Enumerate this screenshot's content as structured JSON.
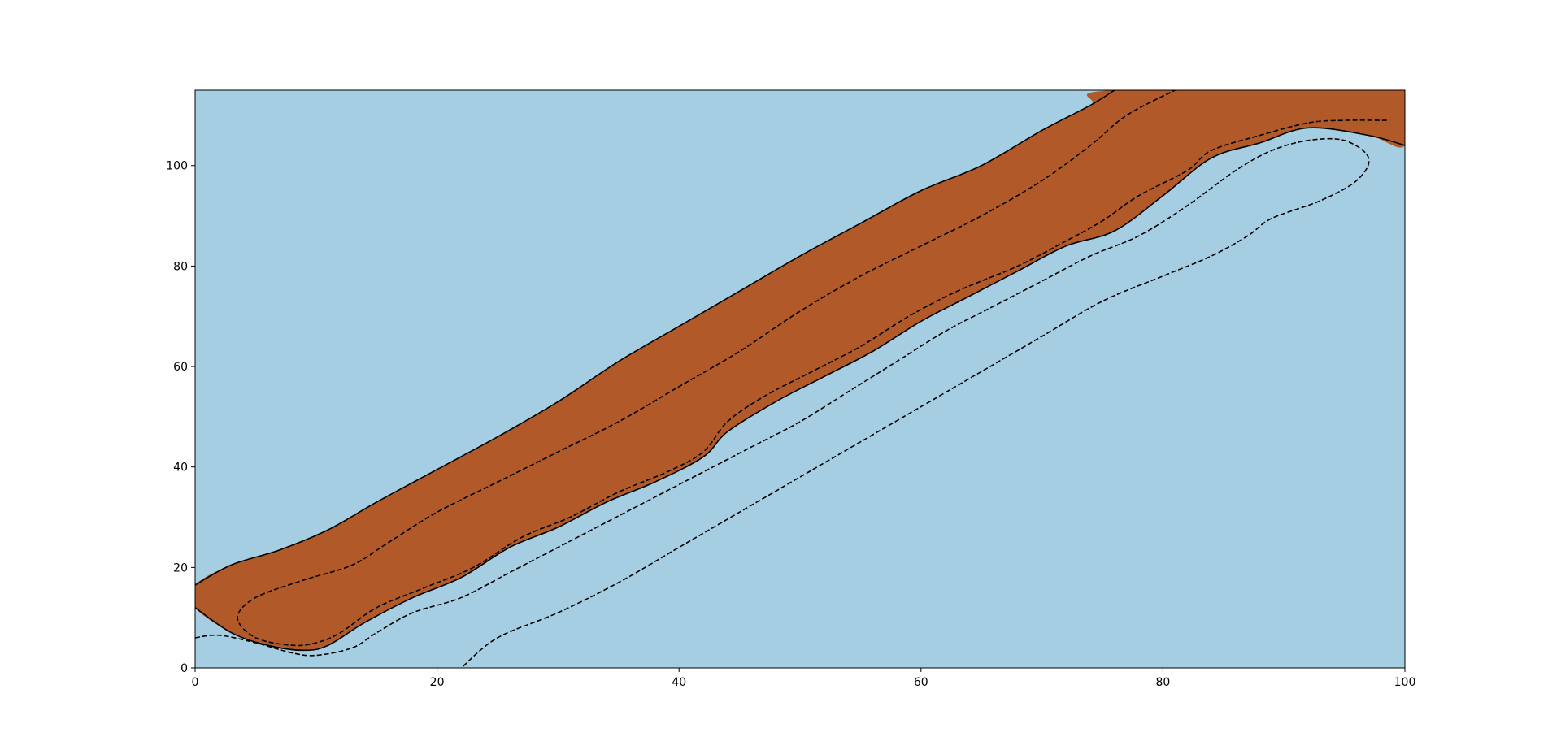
{
  "chart_data": {
    "type": "contour",
    "title": "",
    "xlabel": "",
    "ylabel": "",
    "xlim": [
      0,
      100
    ],
    "ylim": [
      0,
      115
    ],
    "grid": false,
    "legend": "none",
    "xticks": [
      0,
      20,
      40,
      60,
      80,
      100
    ],
    "yticks": [
      0,
      20,
      40,
      60,
      80,
      100
    ],
    "colors": {
      "background_region": "#a6cee3",
      "band_region": "#b15928",
      "contour_line": "#000000"
    },
    "filled_regions": [
      {
        "class": "band",
        "fill": "band_region",
        "boundary": [
          [
            0,
            16.5
          ],
          [
            3,
            20.5
          ],
          [
            7,
            23.5
          ],
          [
            11,
            27.5
          ],
          [
            15,
            33
          ],
          [
            20,
            39.5
          ],
          [
            25,
            46
          ],
          [
            30,
            53
          ],
          [
            35,
            61
          ],
          [
            40,
            68
          ],
          [
            45,
            75
          ],
          [
            50,
            82
          ],
          [
            55,
            88.5
          ],
          [
            60,
            95
          ],
          [
            65,
            100
          ],
          [
            70,
            107
          ],
          [
            74,
            112
          ],
          [
            76,
            115
          ],
          [
            100,
            115
          ],
          [
            100,
            104
          ],
          [
            97,
            106
          ],
          [
            92,
            107.5
          ],
          [
            88,
            104.5
          ],
          [
            84,
            101.5
          ],
          [
            80,
            94
          ],
          [
            76,
            87
          ],
          [
            72,
            84
          ],
          [
            68,
            79
          ],
          [
            64,
            74
          ],
          [
            60,
            69
          ],
          [
            56,
            63
          ],
          [
            52,
            58
          ],
          [
            48,
            53
          ],
          [
            44,
            47
          ],
          [
            42,
            42
          ],
          [
            38,
            37
          ],
          [
            34,
            33
          ],
          [
            30,
            28
          ],
          [
            26,
            24
          ],
          [
            22,
            18
          ],
          [
            18,
            14
          ],
          [
            14,
            9
          ],
          [
            11,
            4.5
          ],
          [
            9,
            3.5
          ],
          [
            6,
            4.5
          ],
          [
            3,
            7
          ],
          [
            0,
            12
          ]
        ]
      }
    ],
    "contours": [
      {
        "style": "solid",
        "points": [
          [
            0,
            16.5
          ],
          [
            3,
            20.5
          ],
          [
            7,
            23.5
          ],
          [
            11,
            27.5
          ],
          [
            15,
            33
          ],
          [
            20,
            39.5
          ],
          [
            25,
            46
          ],
          [
            30,
            53
          ],
          [
            35,
            61
          ],
          [
            40,
            68
          ],
          [
            45,
            75
          ],
          [
            50,
            82
          ],
          [
            55,
            88.5
          ],
          [
            60,
            95
          ],
          [
            65,
            100
          ],
          [
            70,
            107
          ],
          [
            74,
            112
          ],
          [
            76,
            115
          ]
        ]
      },
      {
        "style": "solid",
        "points": [
          [
            0,
            12
          ],
          [
            3,
            7
          ],
          [
            6,
            4.5
          ],
          [
            9,
            3.5
          ],
          [
            11,
            4.5
          ],
          [
            14,
            9
          ],
          [
            18,
            14
          ],
          [
            22,
            18
          ],
          [
            26,
            24
          ],
          [
            30,
            28
          ],
          [
            34,
            33
          ],
          [
            38,
            37
          ],
          [
            42,
            42
          ],
          [
            44,
            47
          ],
          [
            48,
            53
          ],
          [
            52,
            58
          ],
          [
            56,
            63
          ],
          [
            60,
            69
          ],
          [
            64,
            74
          ],
          [
            68,
            79
          ],
          [
            72,
            84
          ],
          [
            76,
            87
          ],
          [
            80,
            94
          ],
          [
            84,
            101.5
          ],
          [
            88,
            104.5
          ],
          [
            92,
            107.5
          ],
          [
            97,
            106
          ],
          [
            100,
            104
          ]
        ]
      },
      {
        "style": "dashed",
        "points": [
          [
            98.5,
            109
          ],
          [
            95,
            109
          ],
          [
            92,
            108.5
          ],
          [
            88,
            106
          ],
          [
            84,
            103
          ],
          [
            82,
            99
          ],
          [
            78,
            94
          ],
          [
            75,
            89
          ],
          [
            72,
            85
          ],
          [
            68,
            80
          ],
          [
            63,
            75
          ],
          [
            59,
            70
          ],
          [
            55,
            64
          ],
          [
            51,
            59
          ],
          [
            47,
            54
          ],
          [
            44,
            49
          ],
          [
            42,
            43
          ],
          [
            39,
            39
          ],
          [
            35,
            35
          ],
          [
            31,
            30
          ],
          [
            27,
            26
          ],
          [
            23,
            20
          ],
          [
            19,
            16
          ],
          [
            15,
            12
          ],
          [
            12,
            7
          ],
          [
            10,
            5
          ],
          [
            8,
            4.5
          ],
          [
            5,
            6
          ],
          [
            3.5,
            10
          ],
          [
            5,
            14
          ],
          [
            9,
            17.5
          ],
          [
            13,
            20.5
          ],
          [
            16,
            25
          ],
          [
            20,
            31
          ],
          [
            25,
            37
          ],
          [
            30,
            43
          ],
          [
            35,
            49
          ],
          [
            40,
            56
          ],
          [
            45,
            63
          ],
          [
            50,
            71
          ],
          [
            55,
            78
          ],
          [
            60,
            84
          ],
          [
            65,
            90
          ],
          [
            70,
            97
          ],
          [
            74,
            104
          ],
          [
            77,
            110
          ],
          [
            81,
            115
          ]
        ]
      },
      {
        "style": "dashed",
        "points": [
          [
            0,
            6
          ],
          [
            2,
            6.5
          ],
          [
            5,
            5
          ],
          [
            8,
            3
          ],
          [
            10,
            2.5
          ],
          [
            13,
            4
          ],
          [
            15,
            7
          ],
          [
            18,
            11
          ],
          [
            22,
            14
          ],
          [
            26,
            19
          ],
          [
            30,
            24
          ],
          [
            34,
            29
          ],
          [
            38,
            34
          ],
          [
            42,
            39
          ],
          [
            46,
            44
          ],
          [
            50,
            49
          ],
          [
            54,
            55
          ],
          [
            58,
            61
          ],
          [
            62,
            67
          ],
          [
            66,
            72
          ],
          [
            70,
            77
          ],
          [
            74,
            82
          ],
          [
            78,
            86
          ],
          [
            82,
            92
          ],
          [
            86,
            99
          ],
          [
            89,
            103
          ],
          [
            92,
            105
          ],
          [
            95,
            105
          ],
          [
            97,
            101.5
          ],
          [
            96,
            97
          ],
          [
            93,
            93
          ],
          [
            89,
            89.5
          ],
          [
            87,
            86
          ],
          [
            84,
            82
          ],
          [
            80,
            78
          ],
          [
            75,
            73
          ],
          [
            70,
            66
          ],
          [
            65,
            59
          ],
          [
            60,
            52
          ],
          [
            55,
            45
          ],
          [
            50,
            38
          ],
          [
            45,
            31
          ],
          [
            40,
            24
          ],
          [
            35,
            17
          ],
          [
            30,
            11
          ],
          [
            25,
            6
          ],
          [
            22,
            0
          ]
        ]
      }
    ]
  }
}
